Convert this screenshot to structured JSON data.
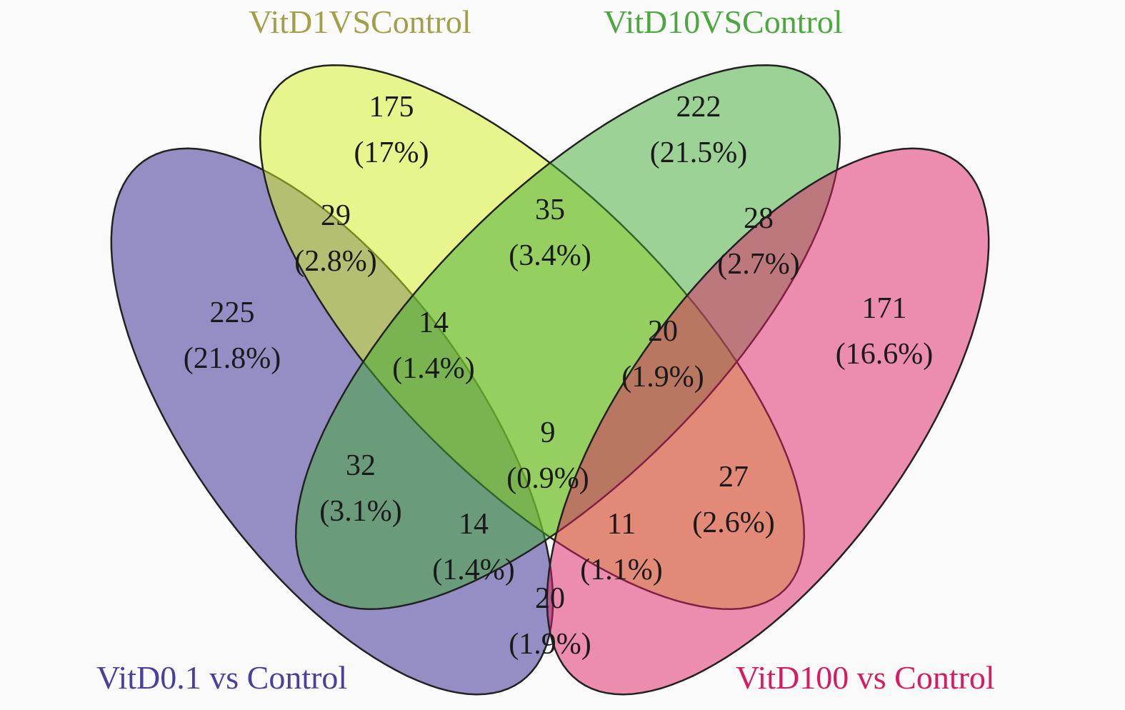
{
  "sets": [
    {
      "name": "VitD0.1 vs Control",
      "color": "#2e2290",
      "title_color": "#4a3f9a"
    },
    {
      "name": "VitD1VSControl",
      "color": "#d6ee1e",
      "title_color": "#a0a048"
    },
    {
      "name": "VitD10VSControl",
      "color": "#3fa932",
      "title_color": "#4aa83e"
    },
    {
      "name": "VitD100 vs Control",
      "color": "#de1d63",
      "title_color": "#d81b60"
    }
  ],
  "regions": [
    {
      "id": "d1_only",
      "count": "175",
      "pct": "(17%)"
    },
    {
      "id": "d10_only",
      "count": "222",
      "pct": "(21.5%)"
    },
    {
      "id": "d01_d1",
      "count": "29",
      "pct": "(2.8%)"
    },
    {
      "id": "d1_d10",
      "count": "35",
      "pct": "(3.4%)"
    },
    {
      "id": "d10_d100",
      "count": "28",
      "pct": "(2.7%)"
    },
    {
      "id": "d01_only",
      "count": "225",
      "pct": "(21.8%)"
    },
    {
      "id": "d01_d1_d10",
      "count": "14",
      "pct": "(1.4%)"
    },
    {
      "id": "d1_d10_d100",
      "count": "20",
      "pct": "(1.9%)"
    },
    {
      "id": "d100_only",
      "count": "171",
      "pct": "(16.6%)"
    },
    {
      "id": "all",
      "count": "9",
      "pct": "(0.9%)"
    },
    {
      "id": "d01_d10",
      "count": "32",
      "pct": "(3.1%)"
    },
    {
      "id": "d1_d100",
      "count": "27",
      "pct": "(2.6%)"
    },
    {
      "id": "d01_d10_d100",
      "count": "14",
      "pct": "(1.4%)"
    },
    {
      "id": "d01_d1_d100",
      "count": "11",
      "pct": "(1.1%)"
    },
    {
      "id": "d01_d100",
      "count": "20",
      "pct": "(1.9%)"
    }
  ]
}
